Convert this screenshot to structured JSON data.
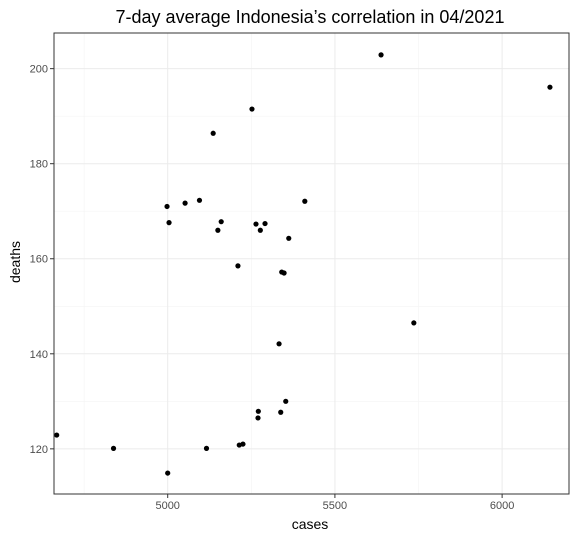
{
  "chart_data": {
    "type": "scatter",
    "title": "7-day average Indonesia’s correlation in 04/2021",
    "xlabel": "cases",
    "ylabel": "deaths",
    "xlim": [
      4660,
      6200
    ],
    "ylim": [
      110.5,
      207.5
    ],
    "x_ticks": [
      5000,
      5500,
      6000
    ],
    "y_ticks": [
      120,
      140,
      160,
      180,
      200
    ],
    "x_tick_labels": [
      "5000",
      "5500",
      "6000"
    ],
    "y_tick_labels": [
      "120",
      "140",
      "160",
      "180",
      "200"
    ],
    "grid": true,
    "legend": "none",
    "points": [
      {
        "x": 4668,
        "y": 122.9
      },
      {
        "x": 4838,
        "y": 120.1
      },
      {
        "x": 4998,
        "y": 171.0
      },
      {
        "x": 5000,
        "y": 114.9
      },
      {
        "x": 5004,
        "y": 167.6
      },
      {
        "x": 5052,
        "y": 171.7
      },
      {
        "x": 5095,
        "y": 172.3
      },
      {
        "x": 5116,
        "y": 120.1
      },
      {
        "x": 5136,
        "y": 186.4
      },
      {
        "x": 5150,
        "y": 166.0
      },
      {
        "x": 5160,
        "y": 167.8
      },
      {
        "x": 5210,
        "y": 158.5
      },
      {
        "x": 5214,
        "y": 120.8
      },
      {
        "x": 5225,
        "y": 121.0
      },
      {
        "x": 5252,
        "y": 191.5
      },
      {
        "x": 5264,
        "y": 167.3
      },
      {
        "x": 5270,
        "y": 126.5
      },
      {
        "x": 5271,
        "y": 127.9
      },
      {
        "x": 5277,
        "y": 166.0
      },
      {
        "x": 5291,
        "y": 167.4
      },
      {
        "x": 5333,
        "y": 142.1
      },
      {
        "x": 5338,
        "y": 127.7
      },
      {
        "x": 5341,
        "y": 157.2
      },
      {
        "x": 5348,
        "y": 157.0
      },
      {
        "x": 5353,
        "y": 130.0
      },
      {
        "x": 5362,
        "y": 164.3
      },
      {
        "x": 5410,
        "y": 172.1
      },
      {
        "x": 5638,
        "y": 202.9
      },
      {
        "x": 5736,
        "y": 146.5
      },
      {
        "x": 6143,
        "y": 196.1
      }
    ]
  }
}
